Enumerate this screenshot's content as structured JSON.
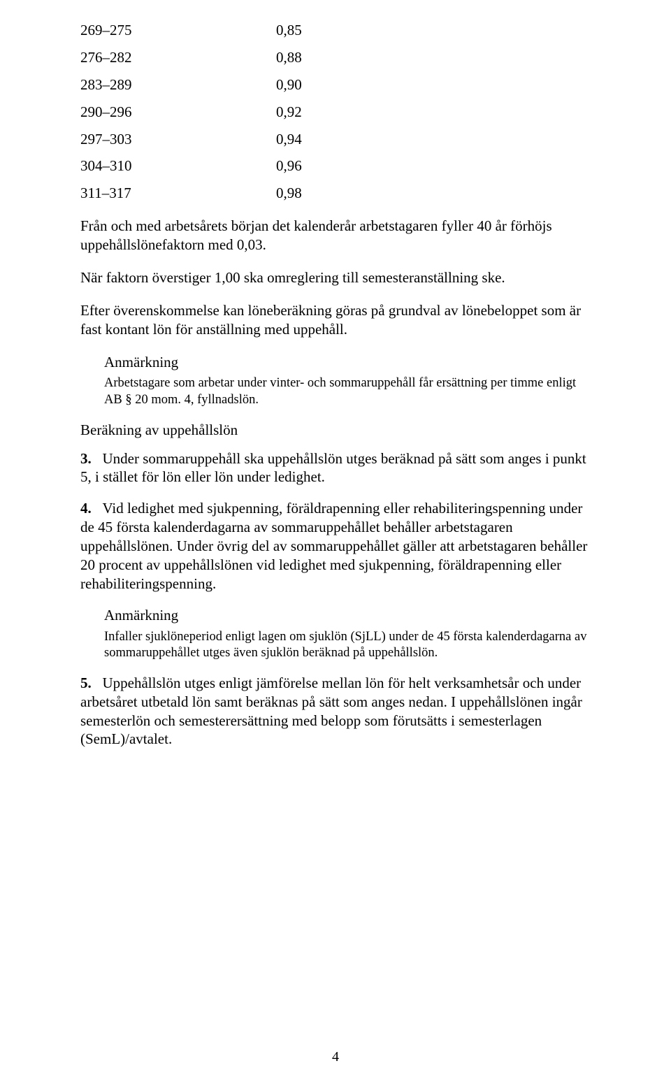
{
  "table": {
    "rows": [
      {
        "range": "269–275",
        "value": "0,85"
      },
      {
        "range": "276–282",
        "value": "0,88"
      },
      {
        "range": "283–289",
        "value": "0,90"
      },
      {
        "range": "290–296",
        "value": "0,92"
      },
      {
        "range": "297–303",
        "value": "0,94"
      },
      {
        "range": "304–310",
        "value": "0,96"
      },
      {
        "range": "311–317",
        "value": "0,98"
      }
    ]
  },
  "paragraphs": {
    "p1": "Från och med arbetsårets början det kalenderår arbetstagaren fyller 40 år förhöjs uppehållslönefaktorn med 0,03.",
    "p2": "När faktorn överstiger 1,00 ska omreglering till semesteranställning ske.",
    "p3": "Efter överenskommelse kan löneberäkning göras på grundval av lönebeloppet som är fast kontant lön för anställning med uppehåll."
  },
  "note1": {
    "heading": "Anmärkning",
    "body": "Arbetstagare som arbetar under vinter- och sommaruppehåll får ersättning per timme enligt AB § 20 mom. 4, fyllnadslön."
  },
  "section_heading": "Beräkning av uppehållslön",
  "item3": {
    "lead": "3.",
    "text": "Under sommaruppehåll ska uppehållslön utges beräknad på sätt som anges i punkt 5, i stället för lön eller lön under ledighet."
  },
  "item4": {
    "lead": "4.",
    "text": "Vid ledighet med sjukpenning, föräldrapenning eller rehabiliteringspenning under de 45 första kalenderdagarna av sommaruppehållet behåller arbetstagaren uppehållslönen. Under övrig del av sommaruppehållet gäller att arbetstagaren behåller 20 procent av uppehållslönen vid ledighet med sjukpenning, föräldrapenning eller rehabiliteringspenning."
  },
  "note2": {
    "heading": "Anmärkning",
    "body": "Infaller sjuklöneperiod enligt lagen om sjuklön (SjLL) under de 45 första kalenderdagarna av sommaruppehållet utges även sjuklön beräknad på uppehållslön."
  },
  "item5": {
    "lead": "5.",
    "text": "Uppehållslön utges enligt jämförelse mellan lön för helt verksamhetsår och under arbetsåret utbetald lön samt beräknas på sätt som anges nedan. I uppehållslönen ingår semesterlön och semesterersättning med belopp som förutsätts i semesterlagen (SemL)/avtalet."
  },
  "page_number": "4"
}
